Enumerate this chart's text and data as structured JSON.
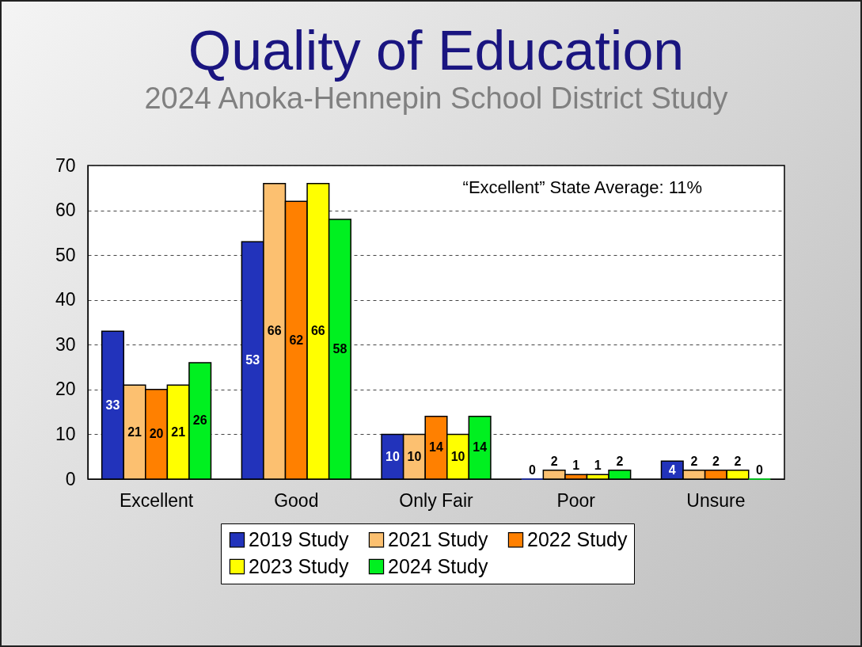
{
  "chart_data": {
    "type": "bar",
    "title": "Quality of Education",
    "subtitle": "2024 Anoka-Hennepin School District Study",
    "annotations": [
      "“Excellent” State Average: 11%"
    ],
    "categories": [
      "Excellent",
      "Good",
      "Only Fair",
      "Poor",
      "Unsure"
    ],
    "series": [
      {
        "name": "2019 Study",
        "color": "#2233bb",
        "values": [
          33,
          53,
          10,
          0,
          4
        ]
      },
      {
        "name": "2021 Study",
        "color": "#fcc070",
        "values": [
          21,
          66,
          10,
          2,
          2
        ]
      },
      {
        "name": "2022 Study",
        "color": "#ff8000",
        "values": [
          20,
          62,
          14,
          1,
          2
        ]
      },
      {
        "name": "2023 Study",
        "color": "#ffff00",
        "values": [
          21,
          66,
          10,
          1,
          2
        ]
      },
      {
        "name": "2024 Study",
        "color": "#00f020",
        "values": [
          26,
          58,
          14,
          2,
          0
        ]
      }
    ],
    "ylim": [
      0,
      70
    ],
    "yticks": [
      0,
      10,
      20,
      30,
      40,
      50,
      60,
      70
    ],
    "grid": "y",
    "legend": "bottom",
    "data_labels": true
  }
}
